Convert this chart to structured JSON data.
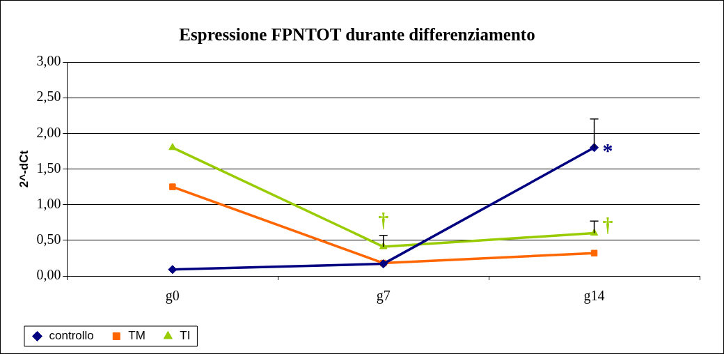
{
  "chart_data": {
    "type": "line",
    "title": "Espressione FPNTOT durante differenziamento",
    "ylabel": "2^-dCt",
    "categories": [
      "g0",
      "g7",
      "g14"
    ],
    "series": [
      {
        "name": "controllo",
        "color": "#000080",
        "marker": "diamond",
        "values": [
          0.09,
          0.17,
          1.8
        ],
        "errors": [
          null,
          null,
          [
            1.8,
            2.2
          ]
        ]
      },
      {
        "name": "TM",
        "color": "#ff6600",
        "marker": "square",
        "values": [
          1.25,
          0.18,
          0.32
        ],
        "errors": [
          null,
          null,
          null
        ]
      },
      {
        "name": "TI",
        "color": "#99cc00",
        "marker": "triangle",
        "values": [
          1.8,
          0.41,
          0.6
        ],
        "errors": [
          null,
          [
            0.41,
            0.57
          ],
          [
            0.6,
            0.77
          ]
        ]
      }
    ],
    "ylim": [
      0,
      3
    ],
    "yticks": [
      {
        "value": 0,
        "label": "0,00"
      },
      {
        "value": 0.5,
        "label": "0,50"
      },
      {
        "value": 1,
        "label": "1,00"
      },
      {
        "value": 1.5,
        "label": "1,50"
      },
      {
        "value": 2,
        "label": "2,00"
      },
      {
        "value": 2.5,
        "label": "2,50"
      },
      {
        "value": 3,
        "label": "3,00"
      }
    ],
    "grid": "y",
    "legend": "bottom left",
    "line_style": "solid",
    "annotations": [
      {
        "text": "*",
        "x": "g14",
        "y": 1.8
      },
      {
        "text": "†",
        "x": "g7",
        "y": 0.41
      },
      {
        "text": "†",
        "x": "g14",
        "y": 0.6
      }
    ]
  }
}
